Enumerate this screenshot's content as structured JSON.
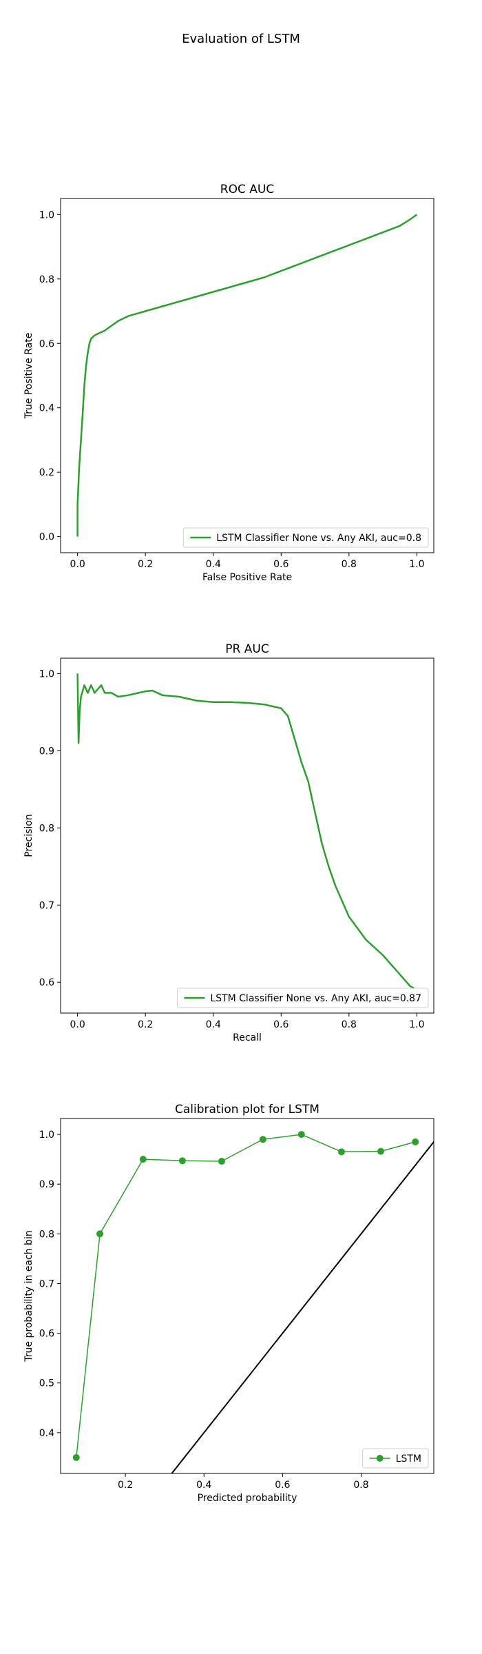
{
  "figure": {
    "title": "Evaluation of LSTM"
  },
  "colors": {
    "series": "#2ca02c",
    "diagonal": "#000000",
    "frame": "#000000"
  },
  "chart_data": [
    {
      "type": "line",
      "title": "ROC AUC",
      "xlabel": "False Positive Rate",
      "ylabel": "True Positive Rate",
      "xlim": [
        -0.05,
        1.05
      ],
      "ylim": [
        -0.05,
        1.05
      ],
      "xticks": [
        0.0,
        0.2,
        0.4,
        0.6,
        0.8,
        1.0
      ],
      "yticks": [
        0.0,
        0.2,
        0.4,
        0.6,
        0.8,
        1.0
      ],
      "tick_format": 1,
      "legend": "lower right",
      "series": [
        {
          "name": "LSTM Classifier None vs. Any AKI, auc=0.8",
          "color": "#2ca02c",
          "marker": false,
          "x": [
            0.0,
            0.0,
            0.005,
            0.01,
            0.015,
            0.02,
            0.025,
            0.03,
            0.035,
            0.04,
            0.05,
            0.06,
            0.08,
            0.1,
            0.12,
            0.15,
            0.2,
            0.25,
            0.3,
            0.35,
            0.4,
            0.45,
            0.5,
            0.55,
            0.6,
            0.65,
            0.7,
            0.75,
            0.8,
            0.85,
            0.9,
            0.95,
            0.98,
            1.0
          ],
          "y": [
            0.0,
            0.1,
            0.22,
            0.3,
            0.38,
            0.47,
            0.53,
            0.57,
            0.6,
            0.615,
            0.625,
            0.63,
            0.64,
            0.655,
            0.67,
            0.685,
            0.7,
            0.715,
            0.73,
            0.745,
            0.76,
            0.775,
            0.79,
            0.805,
            0.825,
            0.845,
            0.865,
            0.885,
            0.905,
            0.925,
            0.945,
            0.965,
            0.985,
            1.0
          ]
        }
      ]
    },
    {
      "type": "line",
      "title": "PR AUC",
      "xlabel": "Recall",
      "ylabel": "Precision",
      "xlim": [
        -0.05,
        1.05
      ],
      "ylim": [
        0.56,
        1.02
      ],
      "xticks": [
        0.0,
        0.2,
        0.4,
        0.6,
        0.8,
        1.0
      ],
      "yticks": [
        0.6,
        0.7,
        0.8,
        0.9,
        1.0
      ],
      "tick_format": 1,
      "legend": "lower right",
      "series": [
        {
          "name": "LSTM Classifier None vs. Any AKI, auc=0.87",
          "color": "#2ca02c",
          "marker": false,
          "x": [
            0.0,
            0.003,
            0.006,
            0.01,
            0.02,
            0.03,
            0.04,
            0.05,
            0.06,
            0.07,
            0.08,
            0.1,
            0.12,
            0.15,
            0.2,
            0.22,
            0.25,
            0.3,
            0.35,
            0.4,
            0.45,
            0.5,
            0.55,
            0.58,
            0.6,
            0.62,
            0.64,
            0.66,
            0.68,
            0.7,
            0.72,
            0.74,
            0.76,
            0.8,
            0.85,
            0.9,
            0.93,
            0.96,
            0.98,
            1.0
          ],
          "y": [
            1.0,
            0.91,
            0.95,
            0.97,
            0.985,
            0.975,
            0.985,
            0.975,
            0.98,
            0.985,
            0.975,
            0.975,
            0.97,
            0.972,
            0.977,
            0.978,
            0.972,
            0.97,
            0.965,
            0.963,
            0.963,
            0.962,
            0.96,
            0.957,
            0.955,
            0.945,
            0.915,
            0.885,
            0.86,
            0.82,
            0.78,
            0.75,
            0.725,
            0.685,
            0.655,
            0.635,
            0.62,
            0.605,
            0.595,
            0.59
          ]
        }
      ]
    },
    {
      "type": "line",
      "title": "Calibration plot for LSTM",
      "xlabel": "Predicted probability",
      "ylabel": "True probability in each bin",
      "xlim": [
        0.035,
        0.985
      ],
      "ylim": [
        0.318,
        1.032
      ],
      "xticks": [
        0.2,
        0.4,
        0.6,
        0.8
      ],
      "yticks": [
        0.4,
        0.5,
        0.6,
        0.7,
        0.8,
        0.9,
        1.0
      ],
      "tick_format": 1,
      "legend": "lower right",
      "diagonal": true,
      "series": [
        {
          "name": "LSTM",
          "color": "#2ca02c",
          "marker": true,
          "x": [
            0.075,
            0.135,
            0.245,
            0.345,
            0.445,
            0.55,
            0.648,
            0.75,
            0.85,
            0.938
          ],
          "y": [
            0.35,
            0.8,
            0.95,
            0.947,
            0.946,
            0.99,
            1.0,
            0.965,
            0.966,
            0.985
          ]
        }
      ]
    }
  ]
}
